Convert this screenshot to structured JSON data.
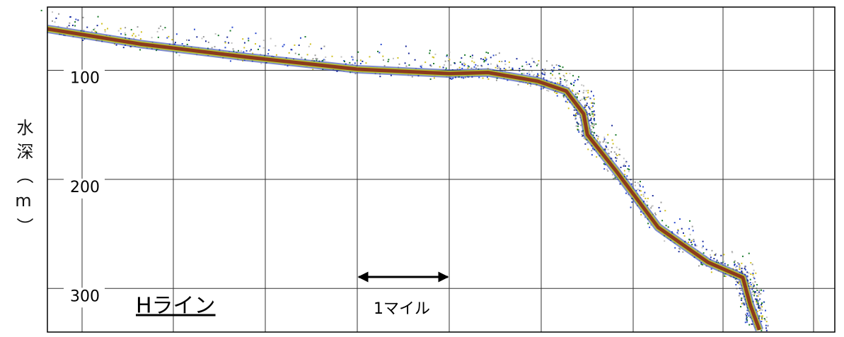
{
  "chart_data": {
    "type": "echogram",
    "ylabel": "水深（m）",
    "ylim": [
      42,
      340
    ],
    "y_inverted": true,
    "yticks": [
      100,
      200,
      300
    ],
    "grid": true,
    "xlim": [
      0,
      8.56
    ],
    "series": [
      {
        "color": "#8b3a1e",
        "x": [
          0,
          1.02,
          2.18,
          3.37,
          4.37,
          4.79,
          5.33,
          5.64,
          5.83,
          5.87,
          6.18,
          6.64,
          7.18,
          7.56,
          7.64,
          7.74
        ],
        "values": [
          62,
          76,
          88,
          99,
          103,
          102,
          110,
          119,
          140,
          159,
          192,
          244,
          276,
          290,
          315,
          338
        ]
      }
    ],
    "annotation": "Hライン",
    "scale_label": "1マイル"
  }
}
